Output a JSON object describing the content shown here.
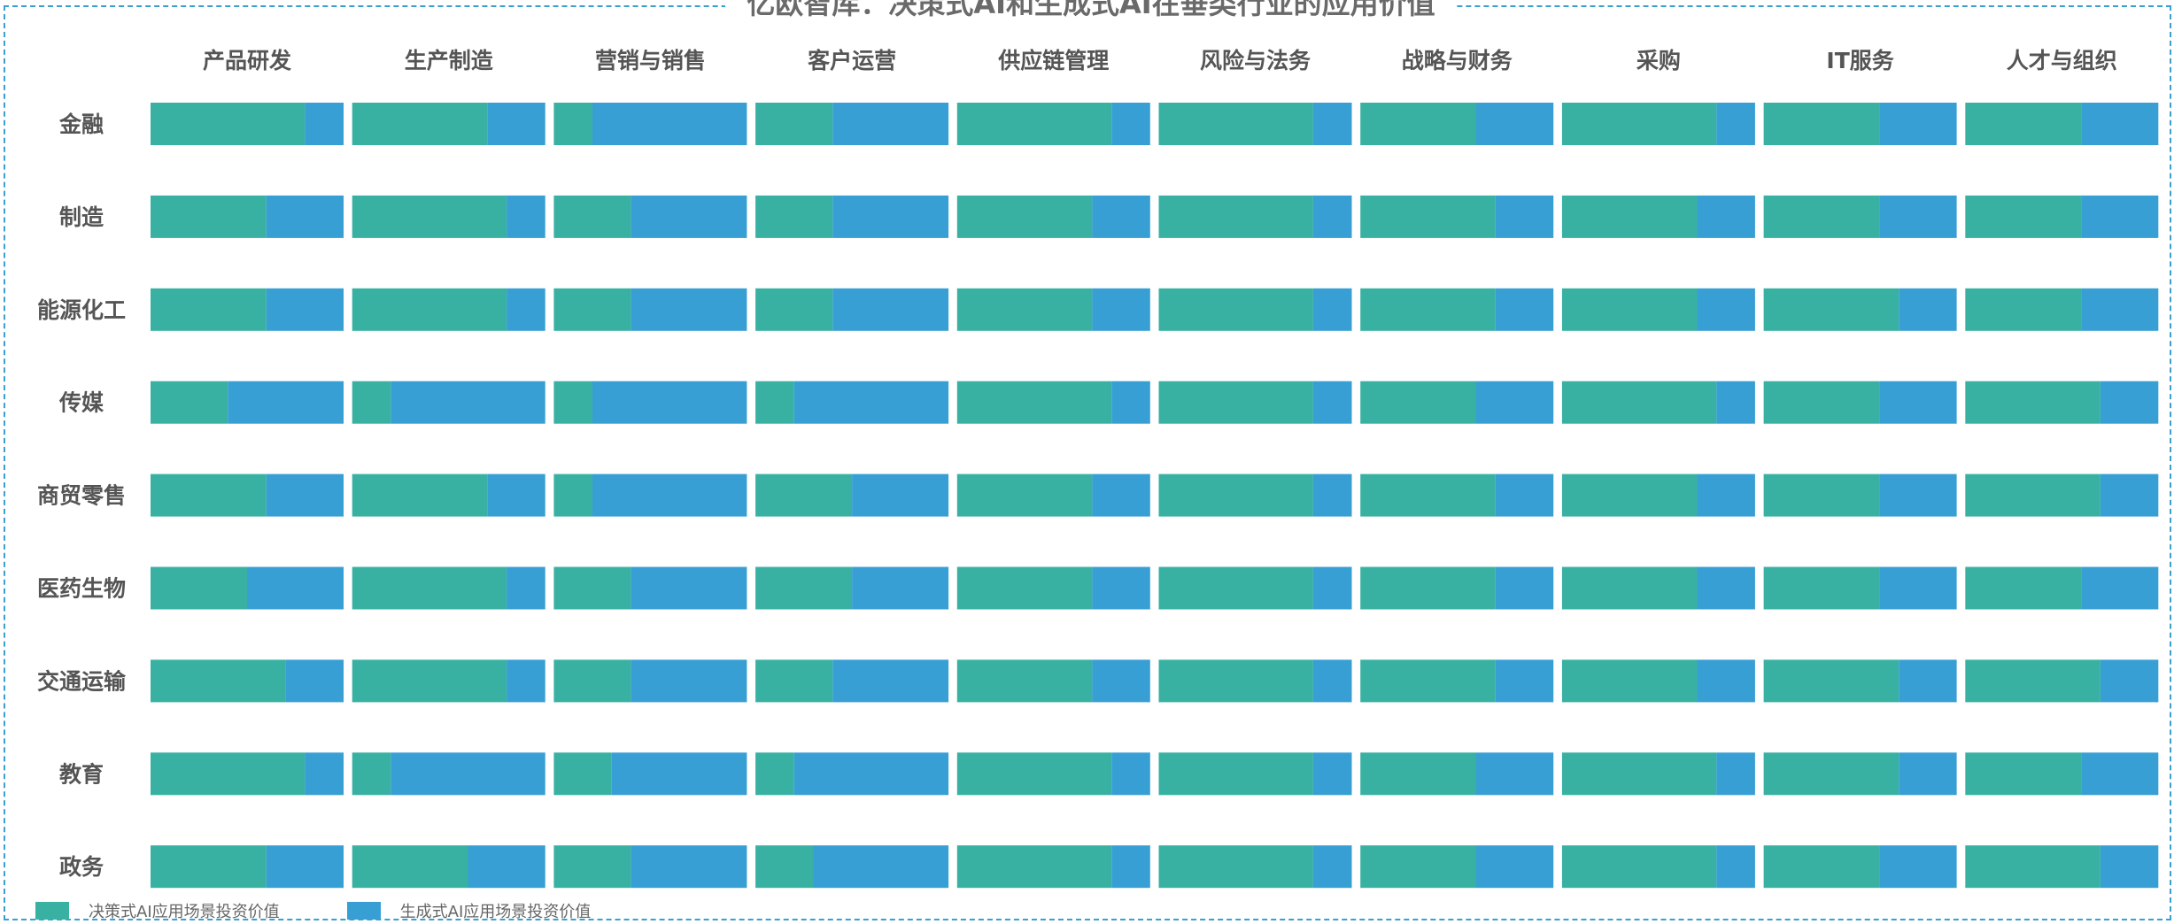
{
  "chart_data": {
    "type": "bar",
    "title": "亿欧智库：决策式AI和生成式AI在垂类行业的应用价值",
    "columns": [
      "产品研发",
      "生产制造",
      "营销与销售",
      "客户运营",
      "供应链管理",
      "风险与法务",
      "战略与财务",
      "采购",
      "IT服务",
      "人才与组织"
    ],
    "rows": [
      "金融",
      "制造",
      "能源化工",
      "传媒",
      "商贸零售",
      "医药生物",
      "交通运输",
      "教育",
      "政务"
    ],
    "series": [
      {
        "name": "决策式AI应用场景投资价值",
        "color": "#38b1a3"
      },
      {
        "name": "生成式AI应用场景投资价值",
        "color": "#389fd4"
      }
    ],
    "decision_share": [
      [
        0.8,
        0.7,
        0.2,
        0.4,
        0.8,
        0.8,
        0.6,
        0.8,
        0.6,
        0.6
      ],
      [
        0.6,
        0.8,
        0.4,
        0.4,
        0.7,
        0.8,
        0.7,
        0.7,
        0.6,
        0.6
      ],
      [
        0.6,
        0.8,
        0.4,
        0.4,
        0.7,
        0.8,
        0.7,
        0.7,
        0.7,
        0.6
      ],
      [
        0.4,
        0.2,
        0.2,
        0.2,
        0.8,
        0.8,
        0.6,
        0.8,
        0.6,
        0.7
      ],
      [
        0.6,
        0.7,
        0.2,
        0.5,
        0.7,
        0.8,
        0.7,
        0.7,
        0.6,
        0.7
      ],
      [
        0.5,
        0.8,
        0.4,
        0.5,
        0.7,
        0.8,
        0.7,
        0.7,
        0.6,
        0.6
      ],
      [
        0.7,
        0.8,
        0.4,
        0.4,
        0.7,
        0.8,
        0.7,
        0.7,
        0.7,
        0.7
      ],
      [
        0.8,
        0.2,
        0.3,
        0.2,
        0.8,
        0.8,
        0.6,
        0.8,
        0.7,
        0.6
      ],
      [
        0.6,
        0.6,
        0.4,
        0.3,
        0.8,
        0.8,
        0.6,
        0.8,
        0.6,
        0.7
      ]
    ]
  }
}
